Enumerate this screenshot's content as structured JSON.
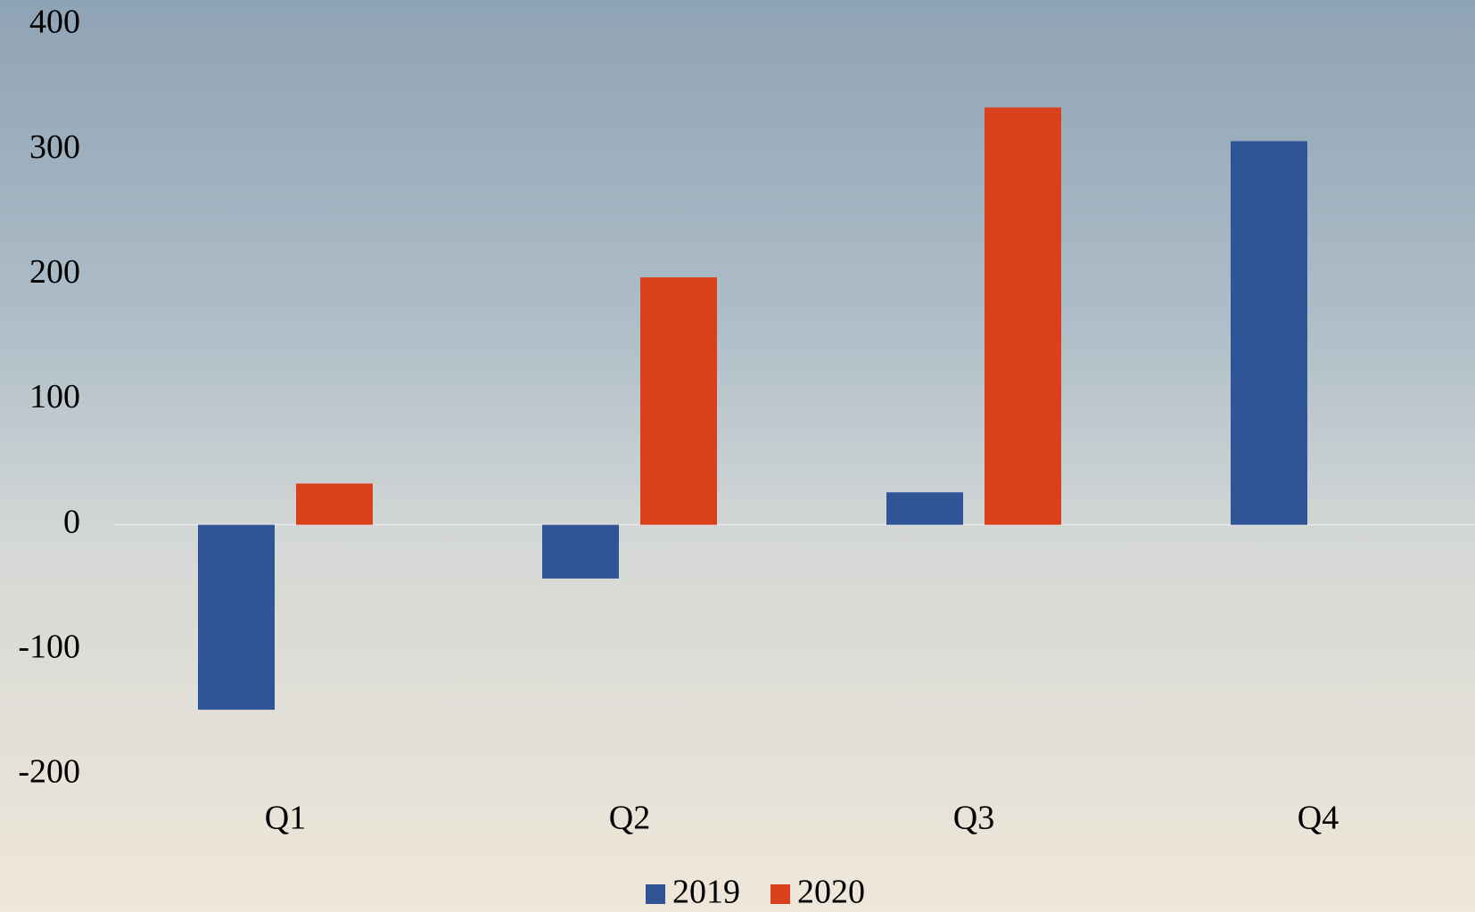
{
  "chart_data": {
    "type": "bar",
    "categories": [
      "Q1",
      "Q2",
      "Q3",
      "Q4"
    ],
    "series": [
      {
        "name": "2019",
        "color": "#2f5597",
        "values": [
          -148,
          -43,
          26,
          307
        ]
      },
      {
        "name": "2020",
        "color": "#d9401b",
        "values": [
          33,
          198,
          334,
          null
        ]
      }
    ],
    "ylim": [
      -200,
      400
    ],
    "yticks": [
      -200,
      -100,
      0,
      100,
      200,
      300,
      400
    ],
    "grid": false,
    "legend": "bottom"
  }
}
